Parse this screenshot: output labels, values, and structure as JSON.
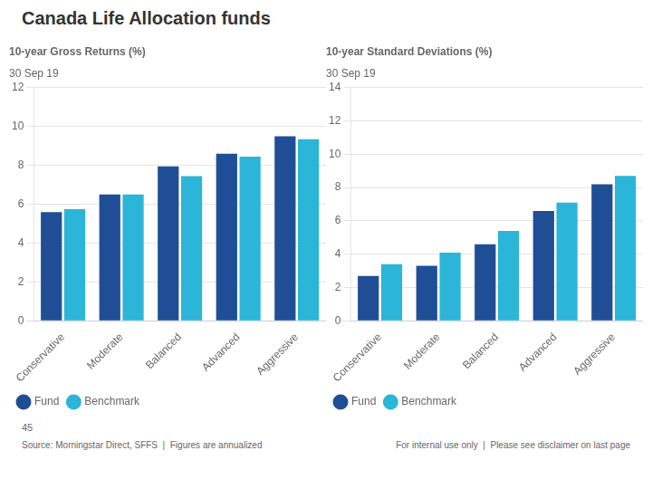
{
  "title": "Canada Life Allocation funds",
  "annotations": [
    "45",
    "Source: Morningstar Direct, SFFS  |  Figures are annualized",
    "For internal use only  |  Please see disclaimer on last page"
  ],
  "chart_data": [
    {
      "type": "bar",
      "title": "10-year Gross Returns (%)",
      "subtitle": "30 Sep 19",
      "categories": [
        "Conservative",
        "Moderate",
        "Balanced",
        "Advanced",
        "Aggressive"
      ],
      "series": [
        {
          "name": "Fund",
          "color": "#1f4e96",
          "values": [
            5.6,
            6.5,
            7.95,
            8.6,
            9.5
          ]
        },
        {
          "name": "Benchmark",
          "color": "#2bb5d8",
          "values": [
            5.75,
            6.5,
            7.45,
            8.45,
            9.35
          ]
        }
      ],
      "ylim": [
        0,
        12
      ],
      "yticks": [
        0,
        2,
        4,
        6,
        8,
        10,
        12
      ],
      "grid": true,
      "legend": "bottom"
    },
    {
      "type": "bar",
      "title": "10-year Standard Deviations (%)",
      "subtitle": "30 Sep 19",
      "categories": [
        "Conservative",
        "Moderate",
        "Balanced",
        "Advanced",
        "Aggressive"
      ],
      "series": [
        {
          "name": "Fund",
          "color": "#1f4e96",
          "values": [
            2.7,
            3.3,
            4.6,
            6.6,
            8.2
          ]
        },
        {
          "name": "Benchmark",
          "color": "#2bb5d8",
          "values": [
            3.4,
            4.1,
            5.4,
            7.1,
            8.7
          ]
        }
      ],
      "ylim": [
        0,
        14
      ],
      "yticks": [
        0,
        2,
        4,
        6,
        8,
        10,
        12,
        14
      ],
      "grid": true,
      "legend": "bottom"
    }
  ]
}
